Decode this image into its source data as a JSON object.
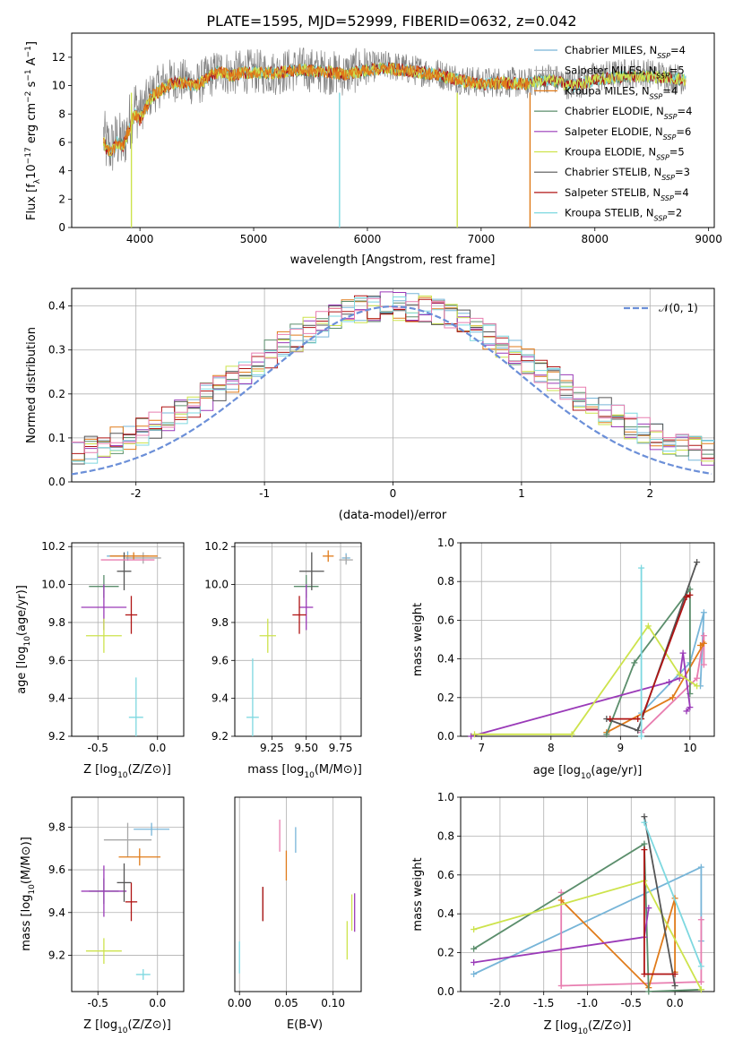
{
  "figure": {
    "title": "PLATE=1595, MJD=52999, FIBERID=0632, z=0.042"
  },
  "colors": [
    "#77b5d8",
    "#a8a8a8",
    "#e07b1a",
    "#5b8e6c",
    "#9a3ab8",
    "#cde34c",
    "#555555",
    "#b01515",
    "#7dd8e0"
  ],
  "legend_models": [
    {
      "name": "Chabrier MILES",
      "nssp": "4"
    },
    {
      "name": "Salpeter MILES",
      "nssp": "5"
    },
    {
      "name": "Kroupa MILES",
      "nssp": "4"
    },
    {
      "name": "Chabrier ELODIE",
      "nssp": "4"
    },
    {
      "name": "Salpeter ELODIE",
      "nssp": "6"
    },
    {
      "name": "Kroupa ELODIE",
      "nssp": "5"
    },
    {
      "name": "Chabrier STELIB",
      "nssp": "3"
    },
    {
      "name": "Salpeter STELIB",
      "nssp": "4"
    },
    {
      "name": "Kroupa STELIB",
      "nssp": "2"
    }
  ],
  "chart_data": [
    {
      "id": "spectrum",
      "type": "line",
      "xlabel": "wavelength [Angstrom, rest frame]",
      "ylabel": "Flux [f",
      "xlim": [
        3400,
        9050
      ],
      "ylim": [
        0,
        13.7
      ],
      "xticks": [
        4000,
        5000,
        6000,
        7000,
        8000,
        9000
      ],
      "yticks": [
        0,
        2,
        4,
        6,
        8,
        10,
        12
      ],
      "data_x": [
        3680,
        3700,
        3750,
        3800,
        3850,
        3900,
        3950,
        4000,
        4100,
        4200,
        4300,
        4400,
        4500,
        4600,
        4700,
        4800,
        4900,
        5000,
        5200,
        5400,
        5600,
        5800,
        6000,
        6200,
        6400,
        6600,
        6800,
        7000,
        7200,
        7400,
        7500,
        7600,
        7800,
        8000,
        8200,
        8400,
        8600,
        8800
      ],
      "data_y": [
        6.4,
        5.8,
        5.6,
        6.2,
        5.8,
        7.2,
        8.6,
        8.2,
        9.4,
        10.2,
        10.4,
        10.3,
        10.1,
        10.6,
        11.1,
        10.8,
        11.0,
        11.0,
        10.9,
        11.2,
        11.0,
        10.8,
        11.3,
        11.4,
        11.1,
        10.9,
        10.5,
        10.2,
        10.3,
        10.1,
        10.4,
        10.6,
        10.0,
        10.6,
        10.8,
        10.9,
        10.7,
        10.4
      ],
      "model_y": [
        6.1,
        5.6,
        5.3,
        6.0,
        5.7,
        6.8,
        8.0,
        7.6,
        9.2,
        9.8,
        10.2,
        10.2,
        10.0,
        10.6,
        11.0,
        10.7,
        10.9,
        10.9,
        10.9,
        11.1,
        11.0,
        10.8,
        11.1,
        11.2,
        11.0,
        10.8,
        10.4,
        10.1,
        10.2,
        10.1,
        10.3,
        10.4,
        10.0,
        10.4,
        10.6,
        10.7,
        10.6,
        10.4
      ],
      "dropouts": [
        3925,
        5755,
        6790,
        7430
      ]
    },
    {
      "id": "residuals",
      "type": "line",
      "xlabel": "(data-model)/error",
      "ylabel": "Normed distribution",
      "xlim": [
        -2.5,
        2.5
      ],
      "ylim": [
        0,
        0.44
      ],
      "xticks": [
        -2,
        -1,
        0,
        1,
        2
      ],
      "yticks": [
        0.0,
        0.1,
        0.2,
        0.3,
        0.4
      ],
      "reference_label": "𝒩(0, 1)",
      "reference_color": "#6b8fd8"
    },
    {
      "id": "age-vs-Z",
      "type": "scatter",
      "xlabel": "Z [log",
      "ylabel": "age  [log",
      "xlim": [
        -0.72,
        0.22
      ],
      "ylim": [
        9.2,
        10.22
      ],
      "xticks": [
        -0.5,
        0.0
      ],
      "yticks": [
        9.2,
        9.4,
        9.6,
        9.8,
        10.0,
        10.2
      ],
      "points": [
        {
          "x": -0.25,
          "y": 10.15,
          "dx": 0.35,
          "dy": 0.05
        },
        {
          "x": -0.12,
          "y": 10.14,
          "dx": 0.3,
          "dy": 0.06
        },
        {
          "x": -0.2,
          "y": 10.15,
          "dx": 0.4,
          "dy": 0.04
        },
        {
          "x": -0.45,
          "y": 9.99,
          "dx": 0.25,
          "dy": 0.12
        },
        {
          "x": -0.45,
          "y": 9.88,
          "dx": 0.38,
          "dy": 0.24
        },
        {
          "x": -0.45,
          "y": 9.73,
          "dx": 0.3,
          "dy": 0.18
        },
        {
          "x": -0.28,
          "y": 10.07,
          "dx": 0.12,
          "dy": 0.2
        },
        {
          "x": -0.22,
          "y": 9.84,
          "dx": 0.1,
          "dy": 0.2
        },
        {
          "x": -0.18,
          "y": 9.3,
          "dx": 0.12,
          "dy": 0.42
        }
      ],
      "extra_pink": {
        "x": -0.25,
        "y": 10.13,
        "dx": 0.45,
        "dy": 0.05
      }
    },
    {
      "id": "age-vs-mass",
      "type": "scatter",
      "xlabel": "mass [log",
      "ylabel": "",
      "xlim": [
        8.98,
        9.9
      ],
      "ylim": [
        9.2,
        10.22
      ],
      "xticks": [
        9.25,
        9.5,
        9.75
      ],
      "yticks": [
        9.2,
        9.4,
        9.6,
        9.8,
        10.0,
        10.2
      ],
      "points": [
        {
          "x": 9.79,
          "y": 10.14,
          "dx": 0.06,
          "dy": 0.05
        },
        {
          "x": 9.79,
          "y": 10.13,
          "dx": 0.1,
          "dy": 0.05
        },
        {
          "x": 9.66,
          "y": 10.15,
          "dx": 0.08,
          "dy": 0.06
        },
        {
          "x": 9.5,
          "y": 9.99,
          "dx": 0.18,
          "dy": 0.12
        },
        {
          "x": 9.5,
          "y": 9.88,
          "dx": 0.1,
          "dy": 0.24
        },
        {
          "x": 9.22,
          "y": 9.73,
          "dx": 0.12,
          "dy": 0.18
        },
        {
          "x": 9.54,
          "y": 10.07,
          "dx": 0.18,
          "dy": 0.2
        },
        {
          "x": 9.45,
          "y": 9.84,
          "dx": 0.1,
          "dy": 0.2
        },
        {
          "x": 9.11,
          "y": 9.3,
          "dx": 0.09,
          "dy": 0.62
        }
      ]
    },
    {
      "id": "weight-vs-age",
      "type": "line",
      "xlabel": "age  [log",
      "ylabel": "mass weight",
      "xlim": [
        6.7,
        10.35
      ],
      "ylim": [
        0,
        1.0
      ],
      "xticks": [
        7,
        8,
        9,
        10
      ],
      "yticks": [
        0.0,
        0.2,
        0.4,
        0.6,
        0.8,
        1.0
      ],
      "series": [
        {
          "x": [
            9.3,
            10.0,
            10.2,
            10.15
          ],
          "y": [
            0.12,
            0.38,
            0.64,
            0.26
          ]
        },
        {
          "x": [
            9.3,
            10.1,
            10.2,
            10.2
          ],
          "y": [
            0.02,
            0.3,
            0.52,
            0.37
          ]
        },
        {
          "x": [
            8.8,
            9.75,
            10.2,
            10.15
          ],
          "y": [
            0.02,
            0.2,
            0.48,
            0.47
          ]
        },
        {
          "x": [
            8.8,
            9.2,
            10.0,
            10.0
          ],
          "y": [
            0.01,
            0.38,
            0.76,
            0.22
          ]
        },
        {
          "x": [
            6.85,
            9.7,
            9.85,
            9.9,
            10.0,
            9.95
          ],
          "y": [
            0.0,
            0.28,
            0.3,
            0.43,
            0.15,
            0.13
          ]
        },
        {
          "x": [
            6.9,
            8.3,
            9.4,
            9.85,
            10.1
          ],
          "y": [
            0.01,
            0.01,
            0.57,
            0.32,
            0.26
          ]
        },
        {
          "x": [
            8.8,
            9.25,
            10.1
          ],
          "y": [
            0.09,
            0.03,
            0.9
          ]
        },
        {
          "x": [
            8.85,
            9.25,
            9.3,
            9.95,
            10.0
          ],
          "y": [
            0.09,
            0.09,
            0.09,
            0.72,
            0.73
          ]
        },
        {
          "x": [
            9.3,
            9.3
          ],
          "y": [
            0.0,
            0.87
          ]
        }
      ]
    },
    {
      "id": "mass-vs-Z",
      "type": "scatter",
      "xlabel": "Z [log",
      "ylabel": "mass [log",
      "xlim": [
        -0.72,
        0.22
      ],
      "ylim": [
        9.03,
        9.94
      ],
      "xticks": [
        -0.5,
        0.0
      ],
      "yticks": [
        9.2,
        9.4,
        9.6,
        9.8
      ],
      "points": [
        {
          "x": -0.05,
          "y": 9.79,
          "dx": 0.3,
          "dy": 0.06
        },
        {
          "x": -0.25,
          "y": 9.74,
          "dx": 0.4,
          "dy": 0.16
        },
        {
          "x": -0.15,
          "y": 9.66,
          "dx": 0.35,
          "dy": 0.08
        },
        {
          "x": -0.45,
          "y": 9.5,
          "dx": 0.25,
          "dy": 0.12
        },
        {
          "x": -0.45,
          "y": 9.5,
          "dx": 0.38,
          "dy": 0.24
        },
        {
          "x": -0.45,
          "y": 9.22,
          "dx": 0.3,
          "dy": 0.12
        },
        {
          "x": -0.28,
          "y": 9.54,
          "dx": 0.12,
          "dy": 0.18
        },
        {
          "x": -0.22,
          "y": 9.45,
          "dx": 0.1,
          "dy": 0.18
        },
        {
          "x": -0.12,
          "y": 9.11,
          "dx": 0.12,
          "dy": 0.05
        }
      ]
    },
    {
      "id": "mass-vs-EBV",
      "type": "scatter",
      "xlabel": "E(B-V)",
      "ylabel": "",
      "xlim": [
        -0.005,
        0.13
      ],
      "ylim": [
        9.03,
        9.94
      ],
      "xticks": [
        0.0,
        0.05,
        0.1
      ],
      "points": [
        {
          "x": 0.06,
          "y": 9.74,
          "dx": 0.0,
          "dy": 0.12
        },
        {
          "x": 0.043,
          "y": 9.76,
          "dx": 0.0,
          "dy": 0.15
        },
        {
          "x": 0.05,
          "y": 9.62,
          "dx": 0.0,
          "dy": 0.14
        },
        {
          "x": 0.12,
          "y": 9.4,
          "dx": 0.0,
          "dy": 0.17
        },
        {
          "x": 0.123,
          "y": 9.4,
          "dx": 0.0,
          "dy": 0.18
        },
        {
          "x": 0.115,
          "y": 9.27,
          "dx": 0.0,
          "dy": 0.18
        },
        {
          "x": 0.025,
          "y": 9.44,
          "dx": 0.0,
          "dy": 0.16
        },
        {
          "x": 0.025,
          "y": 9.44,
          "dx": 0.0,
          "dy": 0.16
        },
        {
          "x": 0.0,
          "y": 9.19,
          "dx": 0.0,
          "dy": 0.15
        }
      ]
    },
    {
      "id": "weight-vs-Z",
      "type": "line",
      "xlabel": "Z [log",
      "ylabel": "mass weight",
      "xlim": [
        -2.45,
        0.45
      ],
      "ylim": [
        0,
        1.0
      ],
      "xticks": [
        -2.0,
        -1.5,
        -1.0,
        -0.5,
        0.0
      ],
      "yticks": [
        0.0,
        0.2,
        0.4,
        0.6,
        0.8,
        1.0
      ],
      "series": [
        {
          "x": [
            -2.3,
            0.3,
            0.3
          ],
          "y": [
            0.09,
            0.64,
            0.26
          ]
        },
        {
          "x": [
            -1.3,
            -1.3,
            0.3,
            0.3
          ],
          "y": [
            0.51,
            0.03,
            0.05,
            0.37
          ]
        },
        {
          "x": [
            -1.3,
            -0.3,
            0.0,
            0.0
          ],
          "y": [
            0.47,
            0.02,
            0.48,
            0.1
          ]
        },
        {
          "x": [
            -2.3,
            -0.35,
            -0.3,
            0.3
          ],
          "y": [
            0.22,
            0.76,
            0.0,
            0.01
          ]
        },
        {
          "x": [
            -2.3,
            -0.35,
            -0.3
          ],
          "y": [
            0.15,
            0.28,
            0.43
          ]
        },
        {
          "x": [
            -2.3,
            -0.35,
            0.3
          ],
          "y": [
            0.32,
            0.57,
            0.01
          ]
        },
        {
          "x": [
            -0.35,
            0.0
          ],
          "y": [
            0.9,
            0.03
          ]
        },
        {
          "x": [
            -0.35,
            -0.35,
            0.0
          ],
          "y": [
            0.73,
            0.09,
            0.09
          ]
        },
        {
          "x": [
            -0.35,
            0.3
          ],
          "y": [
            0.87,
            0.13
          ]
        }
      ]
    }
  ]
}
